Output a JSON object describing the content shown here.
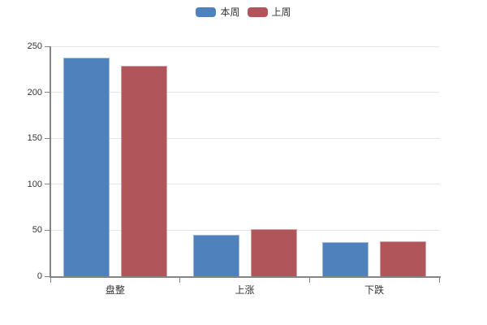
{
  "chart_data": {
    "type": "bar",
    "title": "",
    "categories": [
      "盘整",
      "上涨",
      "下跌"
    ],
    "series": [
      {
        "name": "本周",
        "color": "#4f81bd",
        "values": [
          238,
          45,
          37
        ]
      },
      {
        "name": "上周",
        "color": "#b0555a",
        "values": [
          229,
          51,
          38
        ]
      }
    ],
    "ylim": [
      0,
      250
    ],
    "y_ticks": [
      0,
      50,
      100,
      150,
      200,
      250
    ],
    "grid": true,
    "legend_position": "top-center",
    "colors": {
      "gridline": "#e4e4e4",
      "axis": "#848484",
      "label": "#333333",
      "background": "#ffffff"
    }
  }
}
